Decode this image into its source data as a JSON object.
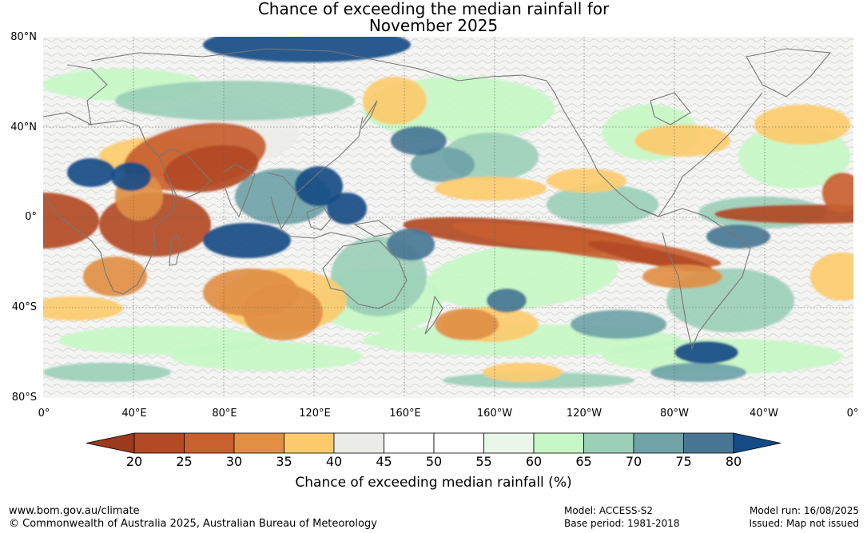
{
  "title_line1": "Chance of exceeding the median rainfall for",
  "title_line2": "November 2025",
  "lat_labels": [
    "80°N",
    "40°N",
    "0°",
    "40°S",
    "80°S"
  ],
  "lon_labels": [
    "0°",
    "40°E",
    "80°E",
    "120°E",
    "160°E",
    "160°W",
    "120°W",
    "80°W",
    "40°W",
    "0°"
  ],
  "colorbar": {
    "ticks": [
      "20",
      "25",
      "30",
      "35",
      "40",
      "45",
      "50",
      "55",
      "60",
      "65",
      "70",
      "75",
      "80"
    ],
    "colors": [
      "#9c3a1f",
      "#b24a25",
      "#c8602f",
      "#e08f44",
      "#fdcb6e",
      "#ebebe8",
      "#ffffff",
      "#ffffff",
      "#eaf6ea",
      "#c6f7c6",
      "#9bcfb8",
      "#6fa3a8",
      "#477795",
      "#164c86"
    ],
    "label": "Chance of exceeding median rainfall (%)"
  },
  "footer": {
    "url": "www.bom.gov.au/climate",
    "copyright": "© Commonwealth of Australia 2025, Australian Bureau of Meteorology",
    "model": "Model: ACCESS-S2",
    "base_period": "Base period: 1981-2018",
    "model_run": "Model run: 16/08/2025",
    "issued": "Issued: Map not issued"
  }
}
